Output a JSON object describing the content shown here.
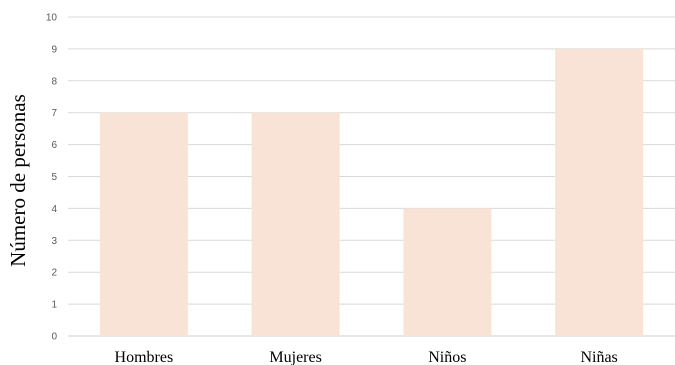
{
  "chart_data": {
    "type": "bar",
    "categories": [
      "Hombres",
      "Mujeres",
      "Niños",
      "Niñas"
    ],
    "values": [
      7,
      7,
      4,
      9
    ],
    "title": "",
    "xlabel": "",
    "ylabel": "Número de personas",
    "ylim": [
      0,
      10
    ],
    "yticks": [
      0,
      1,
      2,
      3,
      4,
      5,
      6,
      7,
      8,
      9,
      10
    ],
    "grid": true,
    "legend": "none",
    "bar_color": "#f9e3d6"
  }
}
